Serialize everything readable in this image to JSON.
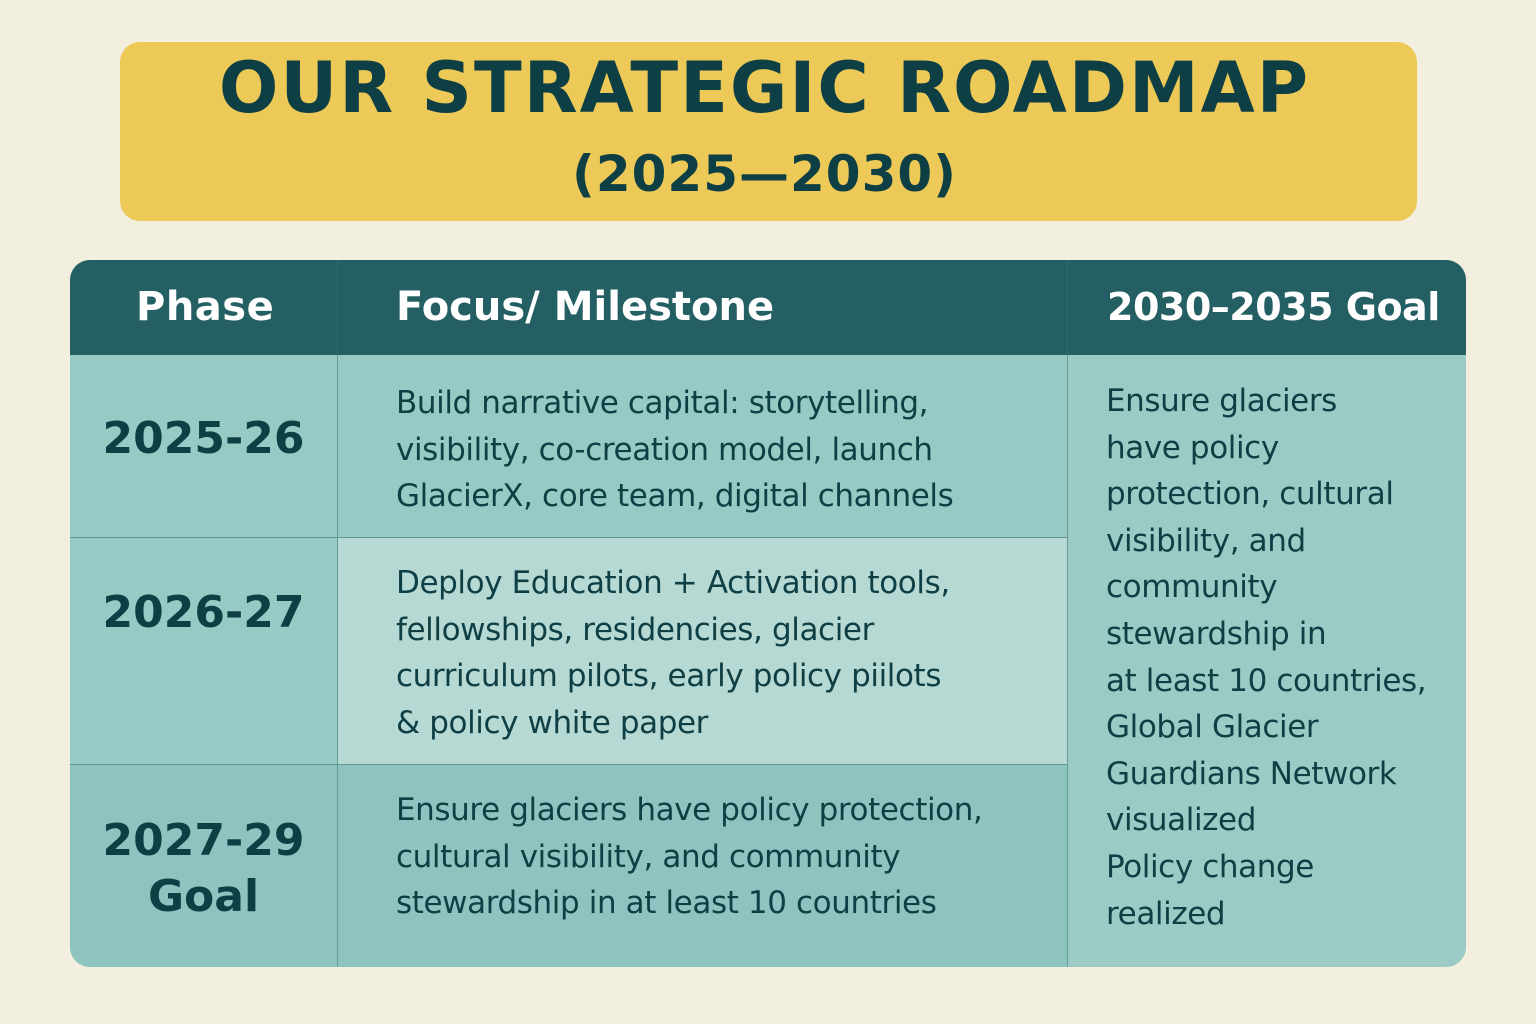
{
  "title": {
    "line1": "OUR STRATEGIC ROADMAP",
    "line2": "(2025—2030)"
  },
  "table": {
    "headers": {
      "phase": "Phase",
      "focus": "Focus/ Milestone",
      "goal": "2030–2035 Goal"
    },
    "rows": [
      {
        "phase": "2025-26",
        "focus": "Build narrative capital: storytelling,\nvisibility, co-creation model, launch\nGlacierX, core team, digital channels"
      },
      {
        "phase": "2026-27",
        "focus": "Deploy Education + Activation tools,\nfellowships, residencies, glacier\ncurriculum pilots, early policy piilots\n& policy white paper"
      },
      {
        "phase": "2027-29\nGoal",
        "focus": "Ensure glaciers have policy protection,\ncultural visibility, and community\nstewardship in at least 10 countries"
      }
    ],
    "goal_text": "Ensure glaciers\nhave policy\nprotection, cultural\nvisibility, and\ncommunity\nstewardship in\nat least 10 countries,\nGlobal Glacier\nGuardians Network\nvisualized\nPolicy change\nrealized"
  },
  "colors": {
    "background": "#f3efdf",
    "banner": "#edc957",
    "header": "#245f63",
    "text_dark": "#0e3f45",
    "row1": "#98cac5",
    "row2": "#b6d9d3",
    "row3": "#8ec4bf"
  }
}
